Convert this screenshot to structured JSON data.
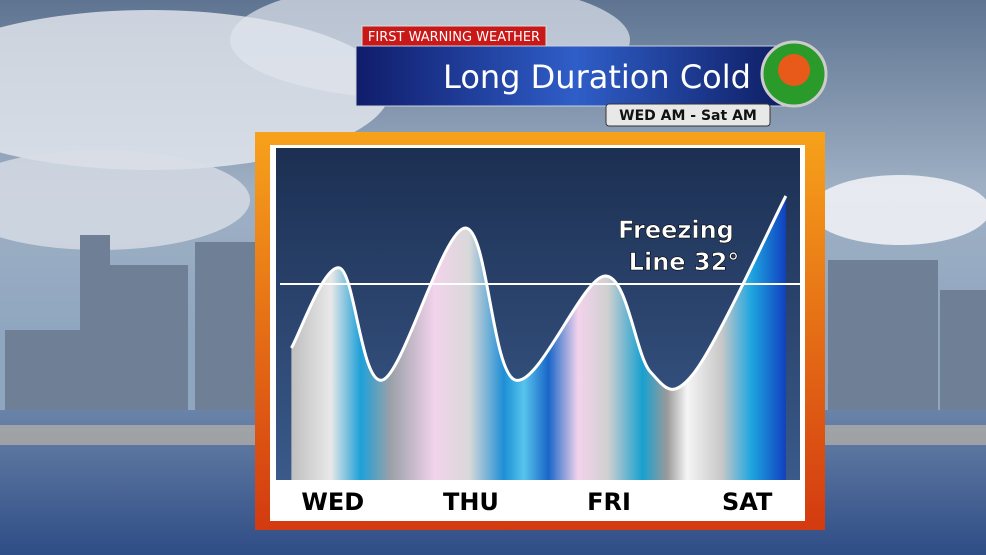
{
  "chart_data": {
    "type": "line",
    "badge": "FIRST WARNING WEATHER",
    "title": "Long Duration Cold",
    "subtitle": "WED AM - Sat AM",
    "x": [
      -0.3,
      0.05,
      0.36,
      0.96,
      1.32,
      1.97,
      2.3,
      2.62,
      3.28
    ],
    "series": [
      {
        "color": "#ffffff",
        "values": [
          24,
          34,
          20,
          39,
          20,
          33,
          21,
          21,
          43
        ]
      }
    ],
    "xlim": [
      -0.31,
      3.31
    ],
    "xticks": [
      {
        "value": 0,
        "label": "WED"
      },
      {
        "value": 1,
        "label": "THU"
      },
      {
        "value": 2,
        "label": "FRI"
      },
      {
        "value": 3,
        "label": "SAT"
      }
    ],
    "ylim": [
      7.5,
      48.75
    ],
    "reference_line": {
      "value": 32,
      "label": [
        "Freezing",
        "Line 32°"
      ]
    }
  }
}
